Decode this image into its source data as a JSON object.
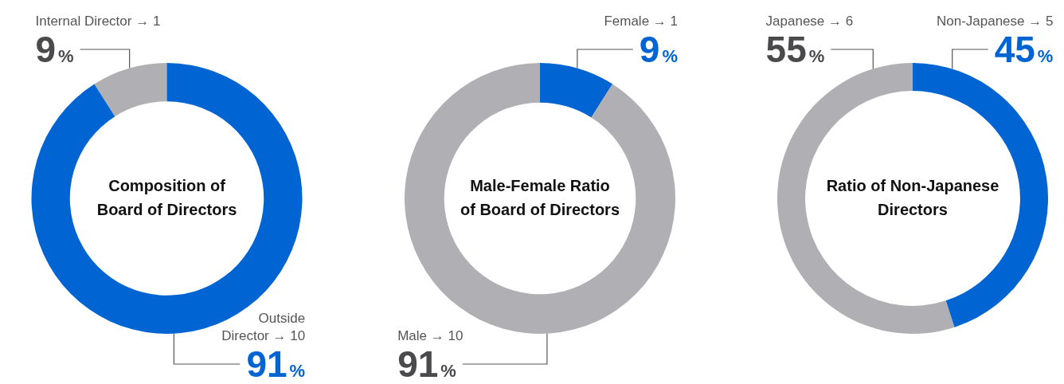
{
  "chart_data": [
    {
      "type": "donut",
      "title": "Composition of Board of Directors",
      "categories": [
        "Internal Director → 1",
        "Outside Director → 10"
      ],
      "values": [
        9,
        91
      ],
      "colors": [
        "#b0b0b4",
        "#0064d2"
      ],
      "value_labels": [
        "9%",
        "91%"
      ]
    },
    {
      "type": "donut",
      "title": "Male-Female Ratio of Board of Directors",
      "categories": [
        "Female → 1",
        "Male → 10"
      ],
      "values": [
        9,
        91
      ],
      "colors": [
        "#0064d2",
        "#b0b0b4"
      ],
      "value_labels": [
        "9%",
        "91%"
      ]
    },
    {
      "type": "donut",
      "title": "Ratio of Non-Japanese Directors",
      "categories": [
        "Japanese → 6",
        "Non-Japanese → 5"
      ],
      "values": [
        55,
        45
      ],
      "colors": [
        "#b0b0b4",
        "#0064d2"
      ],
      "value_labels": [
        "55%",
        "45%"
      ]
    }
  ]
}
